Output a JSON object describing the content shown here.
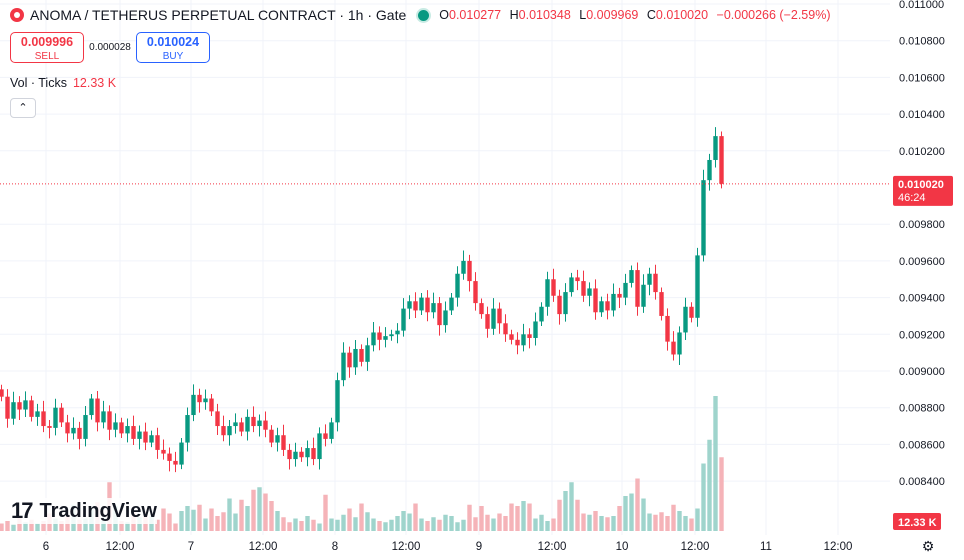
{
  "header": {
    "title": "ANOMA / TETHERUS PERPETUAL CONTRACT · 1h · Gate",
    "ohlc": {
      "o_label": "O",
      "o": "0.010277",
      "h_label": "H",
      "h": "0.010348",
      "l_label": "L",
      "l": "0.009969",
      "c_label": "C",
      "c": "0.010020",
      "change": "−0.000266 (−2.59%)"
    }
  },
  "trade": {
    "sell_price": "0.009996",
    "sell_label": "SELL",
    "spread": "0.000028",
    "buy_price": "0.010024",
    "buy_label": "BUY"
  },
  "volume_legend": {
    "label": "Vol · Ticks",
    "value": "12.33 K"
  },
  "branding": {
    "logo_text": "TradingView",
    "logo_mark": "17"
  },
  "icons": {
    "settings": "gear-icon",
    "collapse": "chevron-up-icon",
    "logo": "gate-logo-icon"
  },
  "colors": {
    "up": "#089981",
    "down": "#f23645",
    "buy": "#2962ff",
    "grid": "#f0f3fa",
    "vol_up": "#9fd4cc",
    "vol_down": "#f5b3b8"
  },
  "chart_data": {
    "type": "candlestick",
    "x_ticks": [
      "6",
      "12:00",
      "7",
      "12:00",
      "8",
      "12:00",
      "9",
      "12:00",
      "10",
      "12:00",
      "11",
      "12:00"
    ],
    "y_ticks": [
      "0.011000",
      "0.010800",
      "0.010600",
      "0.010400",
      "0.010200",
      "0.009800",
      "0.009600",
      "0.009400",
      "0.009200",
      "0.009000",
      "0.008800",
      "0.008600",
      "0.008400"
    ],
    "ylim": [
      0.00828,
      0.011
    ],
    "last_price": "0.010020",
    "countdown": "46:24",
    "last_volume": "12.33 K",
    "candles": [
      {
        "c": 0.00886
      },
      {
        "c": 0.00874
      },
      {
        "c": 0.00883
      },
      {
        "c": 0.00879
      },
      {
        "c": 0.00884
      },
      {
        "c": 0.00875
      },
      {
        "c": 0.00878
      },
      {
        "c": 0.0087
      },
      {
        "c": 0.00869
      },
      {
        "c": 0.0088
      },
      {
        "c": 0.00872
      },
      {
        "c": 0.00866
      },
      {
        "c": 0.00869
      },
      {
        "c": 0.00863
      },
      {
        "c": 0.00876
      },
      {
        "c": 0.00885
      },
      {
        "c": 0.00872
      },
      {
        "c": 0.00878
      },
      {
        "c": 0.00868
      },
      {
        "c": 0.00872
      },
      {
        "c": 0.00866
      },
      {
        "c": 0.0087
      },
      {
        "c": 0.00863
      },
      {
        "c": 0.00867
      },
      {
        "c": 0.00861
      },
      {
        "c": 0.00865
      },
      {
        "c": 0.00857
      },
      {
        "c": 0.00855
      },
      {
        "c": 0.00851
      },
      {
        "c": 0.00849
      },
      {
        "c": 0.00861
      },
      {
        "c": 0.00876
      },
      {
        "c": 0.00887
      },
      {
        "c": 0.00883
      },
      {
        "c": 0.00885
      },
      {
        "c": 0.00878
      },
      {
        "c": 0.0087
      },
      {
        "c": 0.00865
      },
      {
        "c": 0.0087
      },
      {
        "c": 0.00872
      },
      {
        "c": 0.00867
      },
      {
        "c": 0.00875
      },
      {
        "c": 0.0087
      },
      {
        "c": 0.00873
      },
      {
        "c": 0.00868
      },
      {
        "c": 0.00861
      },
      {
        "c": 0.00865
      },
      {
        "c": 0.00857
      },
      {
        "c": 0.00852
      },
      {
        "c": 0.00856
      },
      {
        "c": 0.00853
      },
      {
        "c": 0.00858
      },
      {
        "c": 0.00852
      },
      {
        "c": 0.00866
      },
      {
        "c": 0.00863
      },
      {
        "c": 0.00872
      },
      {
        "c": 0.00895
      },
      {
        "c": 0.0091
      },
      {
        "c": 0.00902
      },
      {
        "c": 0.00912
      },
      {
        "c": 0.00905
      },
      {
        "c": 0.00914
      },
      {
        "c": 0.00921
      },
      {
        "c": 0.00917
      },
      {
        "c": 0.00919
      },
      {
        "c": 0.0092
      },
      {
        "c": 0.00922
      },
      {
        "c": 0.00934
      },
      {
        "c": 0.00938
      },
      {
        "c": 0.00933
      },
      {
        "c": 0.0094
      },
      {
        "c": 0.00932
      },
      {
        "c": 0.00937
      },
      {
        "c": 0.00925
      },
      {
        "c": 0.00933
      },
      {
        "c": 0.0094
      },
      {
        "c": 0.00953
      },
      {
        "c": 0.0096
      },
      {
        "c": 0.00949
      },
      {
        "c": 0.00937
      },
      {
        "c": 0.00931
      },
      {
        "c": 0.00923
      },
      {
        "c": 0.00934
      },
      {
        "c": 0.00926
      },
      {
        "c": 0.0092
      },
      {
        "c": 0.00917
      },
      {
        "c": 0.00914
      },
      {
        "c": 0.0092
      },
      {
        "c": 0.00918
      },
      {
        "c": 0.00927
      },
      {
        "c": 0.00935
      },
      {
        "c": 0.0095
      },
      {
        "c": 0.00941
      },
      {
        "c": 0.00931
      },
      {
        "c": 0.00943
      },
      {
        "c": 0.00951
      },
      {
        "c": 0.00949
      },
      {
        "c": 0.00941
      },
      {
        "c": 0.00945
      },
      {
        "c": 0.00932
      },
      {
        "c": 0.00938
      },
      {
        "c": 0.00933
      },
      {
        "c": 0.00942
      },
      {
        "c": 0.0094
      },
      {
        "c": 0.00948
      },
      {
        "c": 0.00955
      },
      {
        "c": 0.00935
      },
      {
        "c": 0.00947
      },
      {
        "c": 0.00953
      },
      {
        "c": 0.00943
      },
      {
        "c": 0.0093
      },
      {
        "c": 0.00916
      },
      {
        "c": 0.00909
      },
      {
        "c": 0.00921
      },
      {
        "c": 0.00935
      },
      {
        "c": 0.00929
      },
      {
        "c": 0.00963
      },
      {
        "c": 0.01004
      },
      {
        "c": 0.01015
      },
      {
        "c": 0.01028
      },
      {
        "c": 0.01002
      }
    ],
    "volumes": [
      {
        "v": 0.6
      },
      {
        "v": 0.8
      },
      {
        "v": 0.5
      },
      {
        "v": 1.1
      },
      {
        "v": 0.7
      },
      {
        "v": 0.9
      },
      {
        "v": 0.6
      },
      {
        "v": 0.8
      },
      {
        "v": 1.4
      },
      {
        "v": 1.0
      },
      {
        "v": 0.8
      },
      {
        "v": 1.2
      },
      {
        "v": 2.1
      },
      {
        "v": 0.9
      },
      {
        "v": 1.0
      },
      {
        "v": 1.7
      },
      {
        "v": 2.3
      },
      {
        "v": 1.1
      },
      {
        "v": 3.9
      },
      {
        "v": 2.0
      },
      {
        "v": 0.8
      },
      {
        "v": 0.7
      },
      {
        "v": 1.5
      },
      {
        "v": 1.1
      },
      {
        "v": 1.6
      },
      {
        "v": 1.2
      },
      {
        "v": 0.9
      },
      {
        "v": 1.8
      },
      {
        "v": 1.4
      },
      {
        "v": 0.6
      },
      {
        "v": 1.6
      },
      {
        "v": 2.0
      },
      {
        "v": 1.7
      },
      {
        "v": 2.1
      },
      {
        "v": 1.0
      },
      {
        "v": 1.8
      },
      {
        "v": 1.2
      },
      {
        "v": 1.5
      },
      {
        "v": 2.6
      },
      {
        "v": 1.4
      },
      {
        "v": 2.5
      },
      {
        "v": 2.0
      },
      {
        "v": 3.3
      },
      {
        "v": 3.5
      },
      {
        "v": 3.0
      },
      {
        "v": 2.4
      },
      {
        "v": 1.6
      },
      {
        "v": 1.1
      },
      {
        "v": 0.7
      },
      {
        "v": 1.0
      },
      {
        "v": 0.8
      },
      {
        "v": 1.2
      },
      {
        "v": 0.9
      },
      {
        "v": 0.6
      },
      {
        "v": 2.9
      },
      {
        "v": 1.0
      },
      {
        "v": 0.9
      },
      {
        "v": 1.3
      },
      {
        "v": 1.8
      },
      {
        "v": 1.1
      },
      {
        "v": 2.2
      },
      {
        "v": 1.5
      },
      {
        "v": 1.0
      },
      {
        "v": 0.8
      },
      {
        "v": 0.7
      },
      {
        "v": 0.9
      },
      {
        "v": 1.2
      },
      {
        "v": 1.6
      },
      {
        "v": 1.4
      },
      {
        "v": 2.2
      },
      {
        "v": 1.0
      },
      {
        "v": 0.8
      },
      {
        "v": 1.1
      },
      {
        "v": 0.9
      },
      {
        "v": 1.3
      },
      {
        "v": 1.2
      },
      {
        "v": 0.7
      },
      {
        "v": 0.9
      },
      {
        "v": 2.1
      },
      {
        "v": 1.1
      },
      {
        "v": 2.0
      },
      {
        "v": 1.3
      },
      {
        "v": 1.0
      },
      {
        "v": 1.4
      },
      {
        "v": 1.2
      },
      {
        "v": 2.2
      },
      {
        "v": 2.0
      },
      {
        "v": 2.4
      },
      {
        "v": 2.2
      },
      {
        "v": 1.0
      },
      {
        "v": 1.3
      },
      {
        "v": 0.8
      },
      {
        "v": 1.0
      },
      {
        "v": 2.5
      },
      {
        "v": 3.2
      },
      {
        "v": 3.9
      },
      {
        "v": 2.5
      },
      {
        "v": 1.4
      },
      {
        "v": 1.3
      },
      {
        "v": 1.6
      },
      {
        "v": 1.2
      },
      {
        "v": 1.1
      },
      {
        "v": 1.2
      },
      {
        "v": 2.0
      },
      {
        "v": 2.8
      },
      {
        "v": 3.0
      },
      {
        "v": 4.2
      },
      {
        "v": 2.6
      },
      {
        "v": 1.4
      },
      {
        "v": 1.3
      },
      {
        "v": 1.5
      },
      {
        "v": 1.2
      },
      {
        "v": 2.1
      },
      {
        "v": 1.6
      },
      {
        "v": 1.2
      },
      {
        "v": 1.0
      },
      {
        "v": 1.8
      },
      {
        "v": 5.4
      },
      {
        "v": 7.3
      },
      {
        "v": 10.8
      },
      {
        "v": 5.9
      }
    ]
  }
}
